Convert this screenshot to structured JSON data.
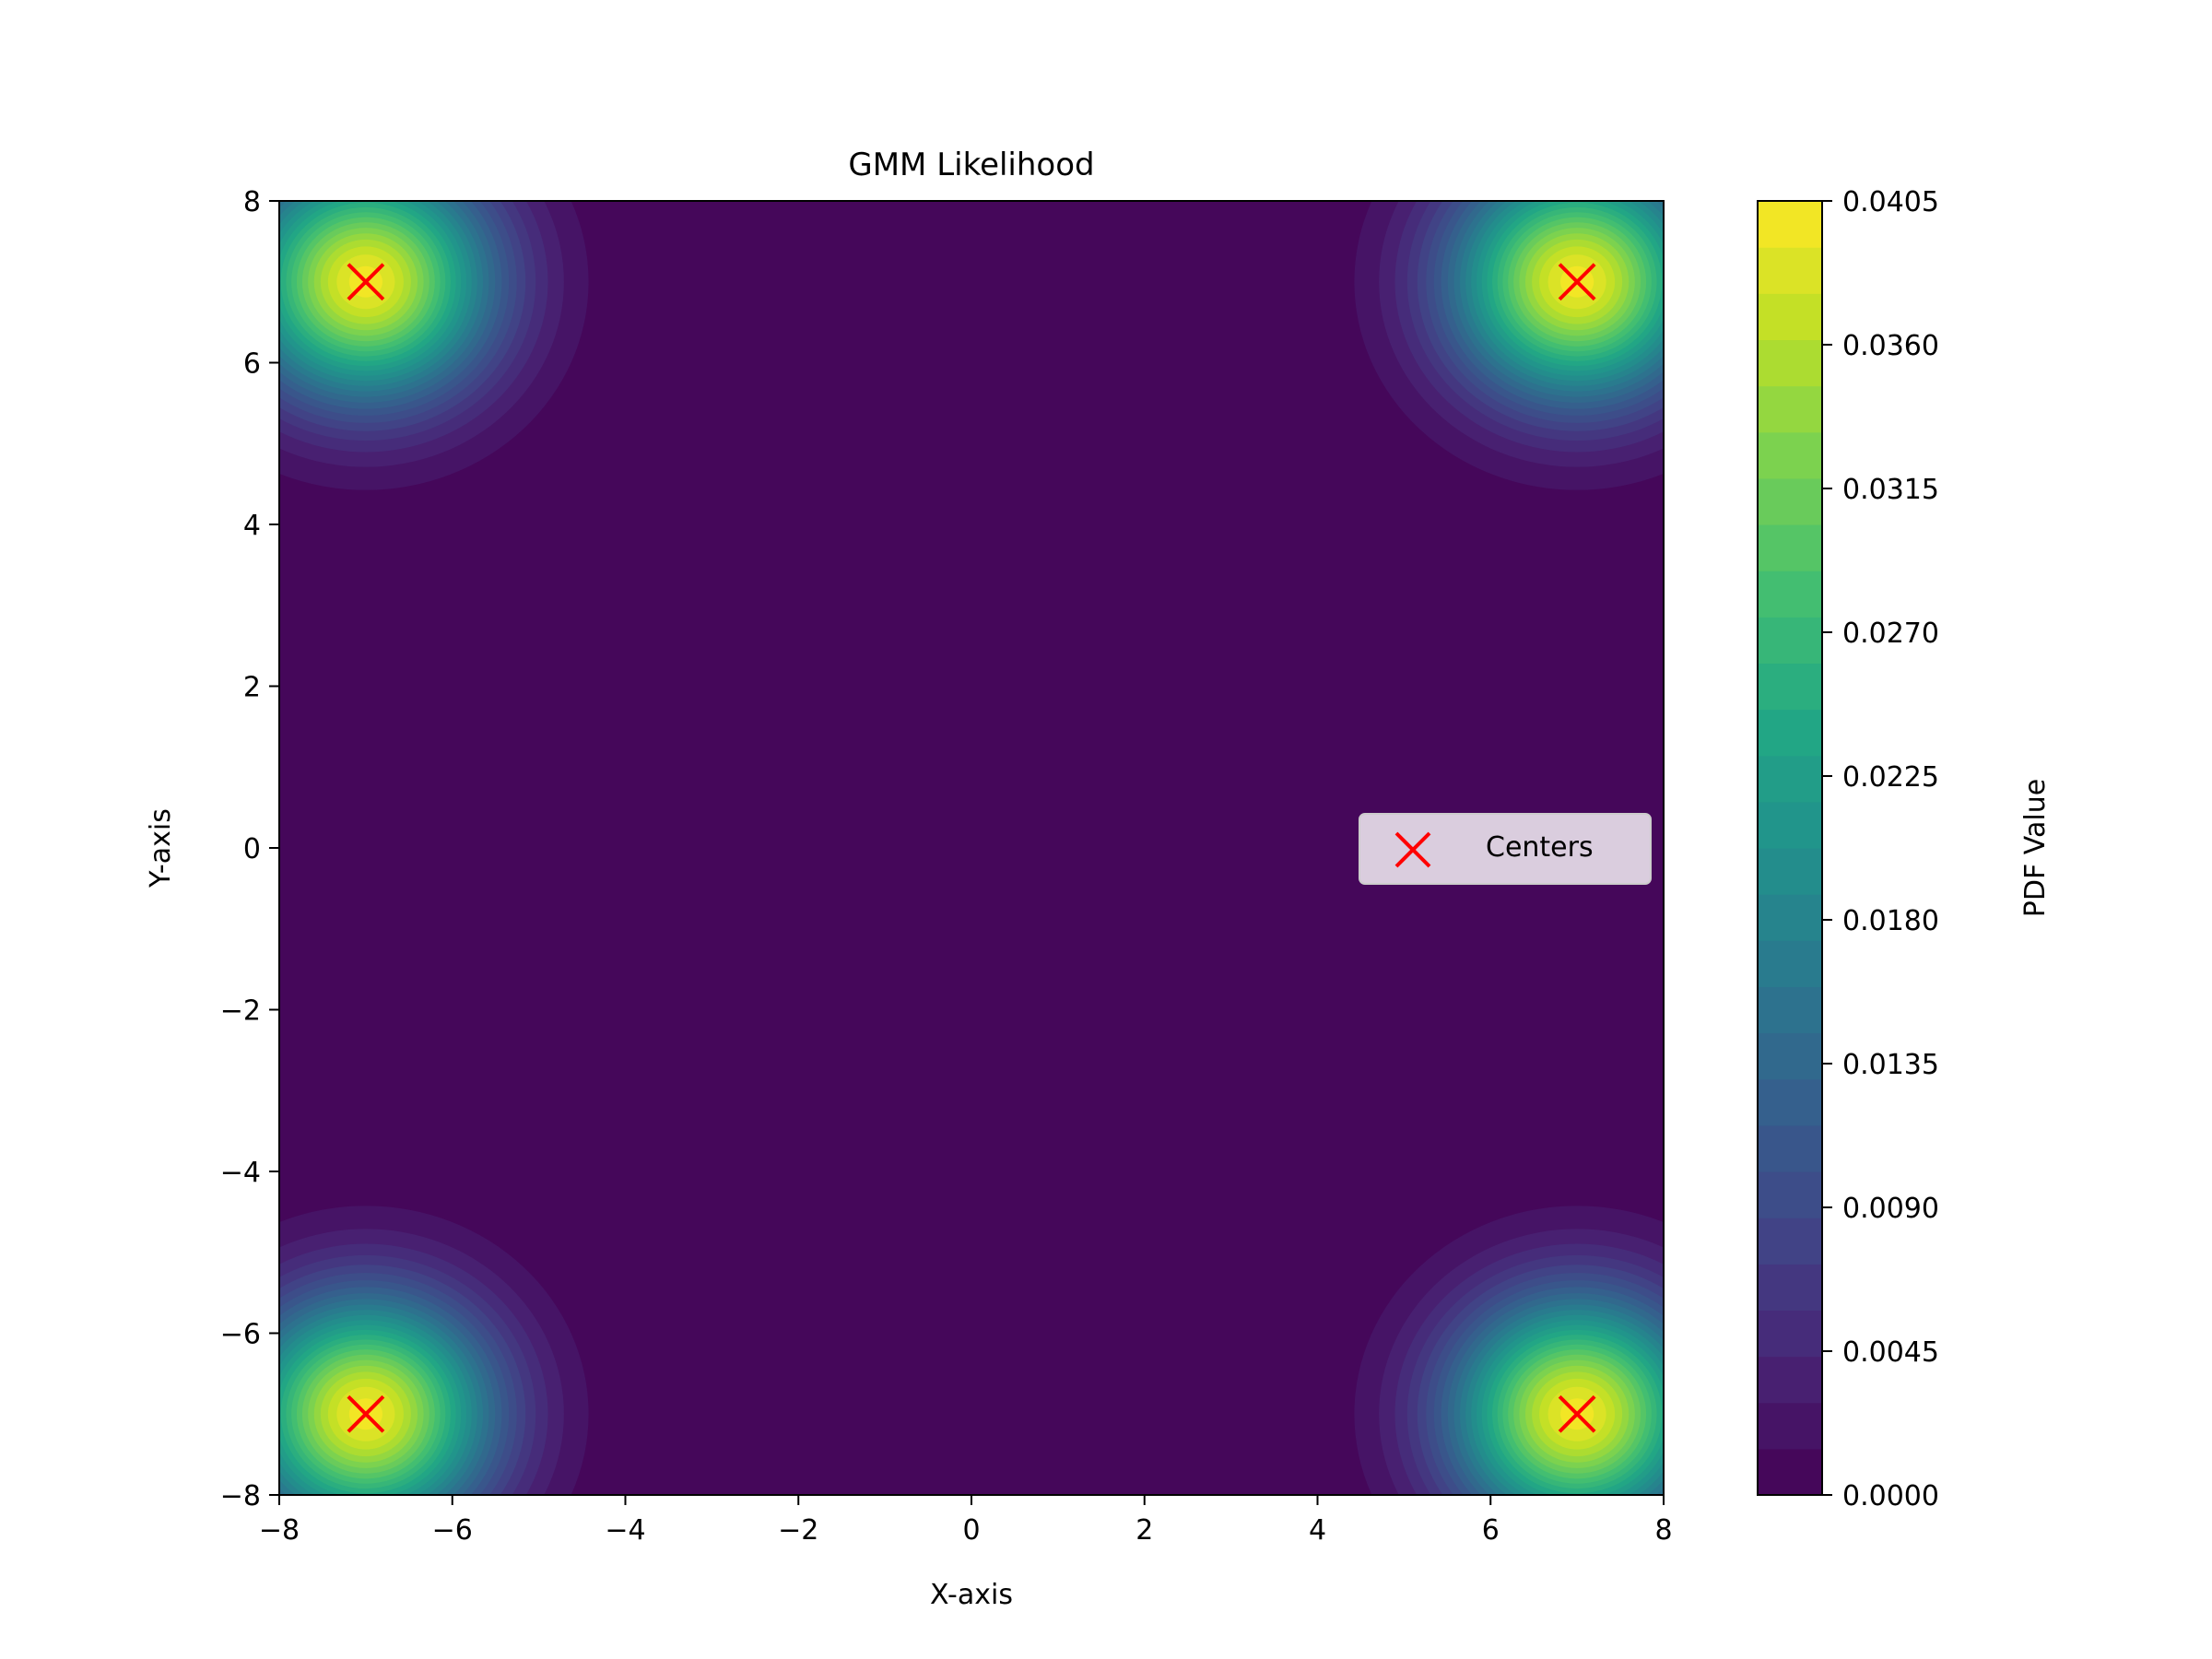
{
  "chart_data": {
    "type": "contour",
    "title": "GMM Likelihood",
    "xlabel": "X-axis",
    "ylabel": "Y-axis",
    "xlim": [
      -8,
      8
    ],
    "ylim": [
      -8,
      8
    ],
    "xticks": [
      "−8",
      "−6",
      "−4",
      "−2",
      "0",
      "2",
      "4",
      "6",
      "8"
    ],
    "xtick_values": [
      -8,
      -6,
      -4,
      -2,
      0,
      2,
      4,
      6,
      8
    ],
    "yticks": [
      "−8",
      "−6",
      "−4",
      "−2",
      "0",
      "2",
      "4",
      "6",
      "8"
    ],
    "ytick_values": [
      -8,
      -6,
      -4,
      -2,
      0,
      2,
      4,
      6,
      8
    ],
    "grid": false,
    "components": [
      {
        "mean": [
          -7,
          7
        ],
        "sigma": 1,
        "weight": 0.25
      },
      {
        "mean": [
          7,
          7
        ],
        "sigma": 1,
        "weight": 0.25
      },
      {
        "mean": [
          -7,
          -7
        ],
        "sigma": 1,
        "weight": 0.25
      },
      {
        "mean": [
          7,
          -7
        ],
        "sigma": 1,
        "weight": 0.25
      }
    ],
    "centers": [
      [
        -7,
        7
      ],
      [
        7,
        7
      ],
      [
        -7,
        -7
      ],
      [
        7,
        -7
      ]
    ],
    "contour_levels": 28,
    "level_max": 0.0405,
    "colormap": "viridis",
    "legend": {
      "label": "Centers",
      "placement": "center-right",
      "marker": "x",
      "color": "#ff0000"
    },
    "colorbar": {
      "label": "PDF Value",
      "ticks": [
        "0.0000",
        "0.0045",
        "0.0090",
        "0.0135",
        "0.0180",
        "0.0225",
        "0.0270",
        "0.0315",
        "0.0360",
        "0.0405"
      ],
      "tick_values": [
        0,
        0.0045,
        0.009,
        0.0135,
        0.018,
        0.0225,
        0.027,
        0.0315,
        0.036,
        0.0405
      ]
    }
  }
}
